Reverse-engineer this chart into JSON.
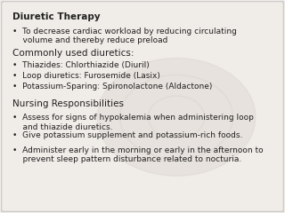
{
  "bg_color": "#f0ece8",
  "border_color": "#cccccc",
  "text_color": "#222222",
  "title1": "Diuretic Therapy",
  "bullet1": "•  To decrease cardiac workload by reducing circulating\n    volume and thereby reduce preload",
  "title2": "Commonly used diuretics:",
  "bullet2a": "•  Thiazides: Chlorthiazide (Diuril)",
  "bullet2b": "•  Loop diuretics: Furosemide (Lasix)",
  "bullet2c": "•  Potassium-Sparing: Spironolactone (Aldactone)",
  "title3": "Nursing Responsibilities",
  "bullet3a": "•  Assess for signs of hypokalemia when administering loop\n    and thiazide diuretics.",
  "bullet3b": "•  Give potassium supplement and potassium-rich foods.",
  "bullet3c": "•  Administer early in the morning or early in the afternoon to\n    prevent sleep pattern disturbance related to nocturia.",
  "title_fontsize": 7.5,
  "body_fontsize": 6.5
}
